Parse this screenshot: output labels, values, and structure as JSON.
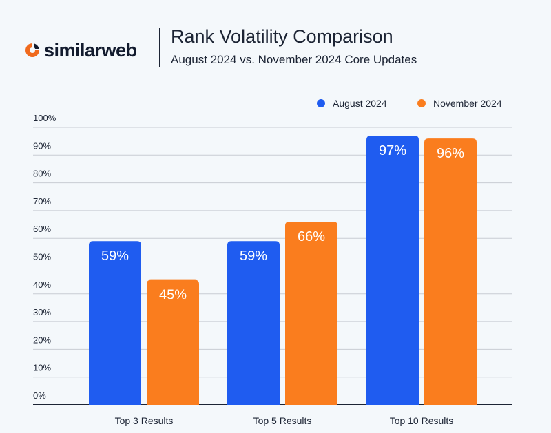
{
  "brand": {
    "name": "similarweb",
    "logo_icon": "similarweb-logo-icon",
    "color": "#f06a1d"
  },
  "header": {
    "title": "Rank Volatility Comparison",
    "subtitle": "August 2024 vs. November 2024 Core Updates"
  },
  "colors": {
    "august": "#1f5cf0",
    "november": "#fa7d1e",
    "grid": "#c8ccd3",
    "axis": "#1c2434"
  },
  "chart_data": {
    "type": "bar",
    "categories": [
      "Top 3 Results",
      "Top 5 Results",
      "Top 10 Results"
    ],
    "series": [
      {
        "name": "August 2024",
        "values": [
          59,
          59,
          97
        ],
        "labels": [
          "59%",
          "59%",
          "97%"
        ]
      },
      {
        "name": "November 2024",
        "values": [
          45,
          66,
          96
        ],
        "labels": [
          "45%",
          "66%",
          "96%"
        ]
      }
    ],
    "yticks": [
      "0%",
      "10%",
      "20%",
      "30%",
      "40%",
      "50%",
      "60%",
      "70%",
      "80%",
      "90%",
      "100%"
    ],
    "ylim": [
      0,
      100
    ],
    "grid": true,
    "legend_position": "top-right"
  }
}
